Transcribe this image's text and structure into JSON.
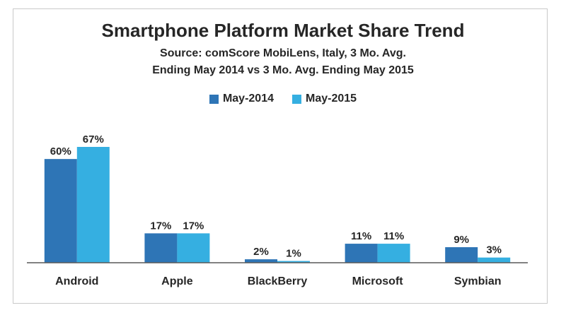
{
  "chart_data": {
    "type": "bar",
    "title": "Smartphone Platform Market Share Trend",
    "subtitle": "Source: comScore MobiLens, Italy, 3 Mo. Avg. Ending May 2014 vs 3 Mo. Avg. Ending May 2015",
    "categories": [
      "Android",
      "Apple",
      "BlackBerry",
      "Microsoft",
      "Symbian"
    ],
    "series": [
      {
        "name": "May-2014",
        "values": [
          60,
          17,
          2,
          11,
          9
        ],
        "color": "#2e75b6"
      },
      {
        "name": "May-2015",
        "values": [
          67,
          17,
          1,
          11,
          3
        ],
        "color": "#35afe1"
      }
    ],
    "value_labels": [
      [
        "60%",
        "17%",
        "2%",
        "11%",
        "9%"
      ],
      [
        "67%",
        "17%",
        "1%",
        "11%",
        "3%"
      ]
    ],
    "ylim": [
      0,
      67
    ],
    "legend": "top-center",
    "grid": false
  }
}
